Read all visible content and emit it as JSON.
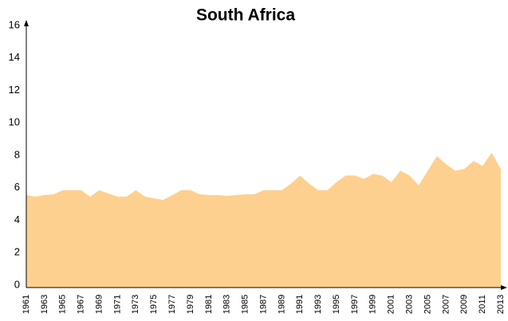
{
  "chart_data": {
    "type": "area",
    "title": "South Africa",
    "x": [
      1961,
      1962,
      1963,
      1964,
      1965,
      1966,
      1967,
      1968,
      1969,
      1970,
      1971,
      1972,
      1973,
      1974,
      1975,
      1976,
      1977,
      1978,
      1979,
      1980,
      1981,
      1982,
      1983,
      1984,
      1985,
      1986,
      1987,
      1988,
      1989,
      1990,
      1991,
      1992,
      1993,
      1994,
      1995,
      1996,
      1997,
      1998,
      1999,
      2000,
      2001,
      2002,
      2003,
      2004,
      2005,
      2006,
      2007,
      2008,
      2009,
      2010,
      2011,
      2012,
      2013
    ],
    "values": [
      5.7,
      5.6,
      5.7,
      5.75,
      6.0,
      6.0,
      6.0,
      5.6,
      6.0,
      5.8,
      5.6,
      5.6,
      6.0,
      5.6,
      5.5,
      5.4,
      5.7,
      6.0,
      6.0,
      5.75,
      5.7,
      5.7,
      5.65,
      5.7,
      5.75,
      5.75,
      6.0,
      6.0,
      6.0,
      6.4,
      6.9,
      6.4,
      6.0,
      6.0,
      6.5,
      6.9,
      6.9,
      6.7,
      7.0,
      6.9,
      6.5,
      7.2,
      6.9,
      6.3,
      7.2,
      8.1,
      7.6,
      7.2,
      7.3,
      7.8,
      7.5,
      8.3,
      7.3
    ],
    "color": "#fed08f",
    "xlim": [
      1961,
      2013
    ],
    "xticks": [
      1961,
      1963,
      1965,
      1967,
      1969,
      1971,
      1973,
      1975,
      1977,
      1979,
      1981,
      1983,
      1985,
      1987,
      1989,
      1991,
      1993,
      1995,
      1997,
      1999,
      2001,
      2003,
      2005,
      2007,
      2009,
      2011,
      2013
    ],
    "ylim": [
      0,
      16
    ],
    "yticks": [
      0,
      2,
      4,
      6,
      8,
      10,
      12,
      14,
      16
    ],
    "grid": false
  }
}
